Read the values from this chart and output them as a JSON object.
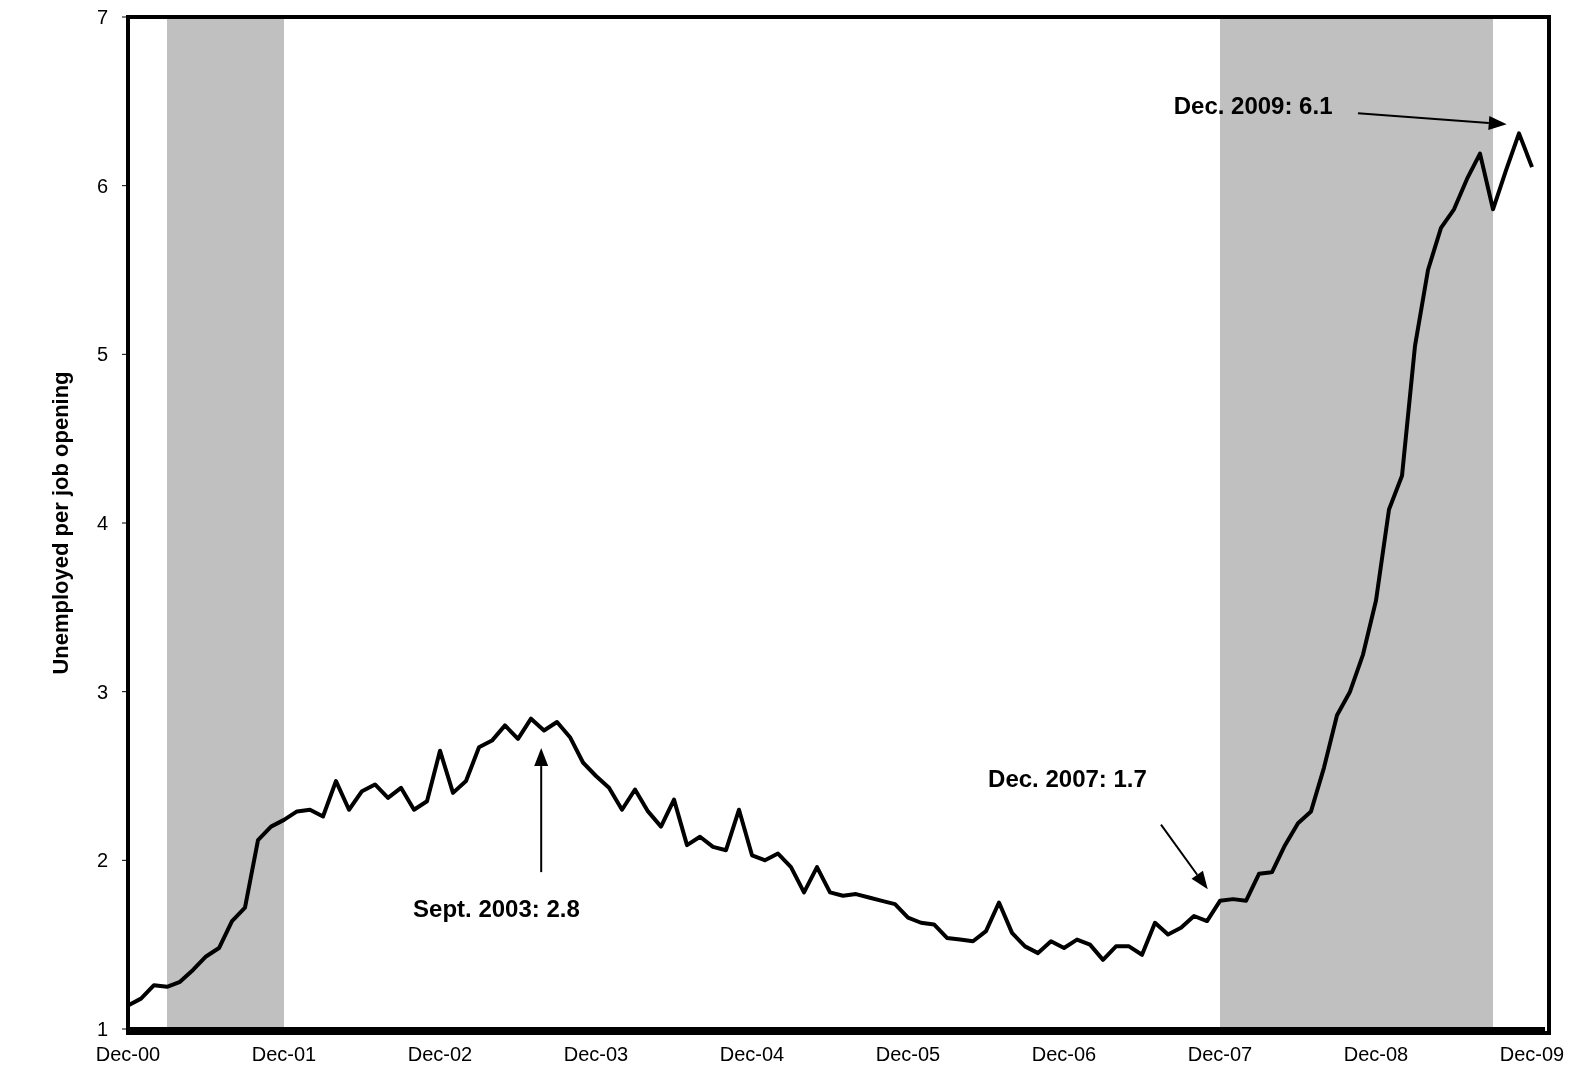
{
  "chart_data": {
    "type": "line",
    "ylabel": "Unemployed per job opening",
    "x": [
      "2000-12",
      "2001-01",
      "2001-02",
      "2001-03",
      "2001-04",
      "2001-05",
      "2001-06",
      "2001-07",
      "2001-08",
      "2001-09",
      "2001-10",
      "2001-11",
      "2001-12",
      "2002-01",
      "2002-02",
      "2002-03",
      "2002-04",
      "2002-05",
      "2002-06",
      "2002-07",
      "2002-08",
      "2002-09",
      "2002-10",
      "2002-11",
      "2002-12",
      "2003-01",
      "2003-02",
      "2003-03",
      "2003-04",
      "2003-05",
      "2003-06",
      "2003-07",
      "2003-08",
      "2003-09",
      "2003-10",
      "2003-11",
      "2003-12",
      "2004-01",
      "2004-02",
      "2004-03",
      "2004-04",
      "2004-05",
      "2004-06",
      "2004-07",
      "2004-08",
      "2004-09",
      "2004-10",
      "2004-11",
      "2004-12",
      "2005-01",
      "2005-02",
      "2005-03",
      "2005-04",
      "2005-05",
      "2005-06",
      "2005-07",
      "2005-08",
      "2005-09",
      "2005-10",
      "2005-11",
      "2005-12",
      "2006-01",
      "2006-02",
      "2006-03",
      "2006-04",
      "2006-05",
      "2006-06",
      "2006-07",
      "2006-08",
      "2006-09",
      "2006-10",
      "2006-11",
      "2006-12",
      "2007-01",
      "2007-02",
      "2007-03",
      "2007-04",
      "2007-05",
      "2007-06",
      "2007-07",
      "2007-08",
      "2007-09",
      "2007-10",
      "2007-11",
      "2007-12",
      "2008-01",
      "2008-02",
      "2008-03",
      "2008-04",
      "2008-05",
      "2008-06",
      "2008-07",
      "2008-08",
      "2008-09",
      "2008-10",
      "2008-11",
      "2008-12",
      "2009-01",
      "2009-02",
      "2009-03",
      "2009-04",
      "2009-05",
      "2009-06",
      "2009-07",
      "2009-08",
      "2009-09",
      "2009-10",
      "2009-11",
      "2009-12"
    ],
    "series": [
      {
        "color": "#000000",
        "values": [
          1.14,
          1.18,
          1.26,
          1.25,
          1.28,
          1.35,
          1.43,
          1.48,
          1.64,
          1.72,
          2.12,
          2.2,
          2.24,
          2.29,
          2.3,
          2.26,
          2.47,
          2.3,
          2.41,
          2.45,
          2.37,
          2.43,
          2.3,
          2.35,
          2.65,
          2.4,
          2.47,
          2.67,
          2.71,
          2.8,
          2.72,
          2.84,
          2.77,
          2.82,
          2.73,
          2.58,
          2.5,
          2.43,
          2.3,
          2.42,
          2.29,
          2.2,
          2.36,
          2.09,
          2.14,
          2.08,
          2.06,
          2.3,
          2.03,
          2.0,
          2.04,
          1.96,
          1.81,
          1.96,
          1.81,
          1.79,
          1.8,
          1.78,
          1.76,
          1.74,
          1.66,
          1.63,
          1.62,
          1.54,
          1.53,
          1.52,
          1.58,
          1.75,
          1.57,
          1.49,
          1.45,
          1.52,
          1.48,
          1.53,
          1.5,
          1.41,
          1.49,
          1.49,
          1.44,
          1.63,
          1.56,
          1.6,
          1.67,
          1.64,
          1.76,
          1.77,
          1.76,
          1.92,
          1.93,
          2.09,
          2.22,
          2.29,
          2.55,
          2.86,
          3.0,
          3.22,
          3.54,
          4.08,
          4.28,
          5.05,
          5.5,
          5.75,
          5.86,
          6.04,
          6.19,
          5.86,
          6.09,
          6.31,
          6.11
        ]
      }
    ],
    "xlim": [
      "2000-12",
      "2010-01"
    ],
    "xticks": [
      {
        "value": "2000-12",
        "label": "Dec-00"
      },
      {
        "value": "2001-12",
        "label": "Dec-01"
      },
      {
        "value": "2002-12",
        "label": "Dec-02"
      },
      {
        "value": "2003-12",
        "label": "Dec-03"
      },
      {
        "value": "2004-12",
        "label": "Dec-04"
      },
      {
        "value": "2005-12",
        "label": "Dec-05"
      },
      {
        "value": "2006-12",
        "label": "Dec-06"
      },
      {
        "value": "2007-12",
        "label": "Dec-07"
      },
      {
        "value": "2008-12",
        "label": "Dec-08"
      },
      {
        "value": "2009-12",
        "label": "Dec-09"
      }
    ],
    "ylim": [
      1,
      7
    ],
    "yticks": [
      1,
      2,
      3,
      4,
      5,
      6,
      7
    ],
    "bands": [
      {
        "axis": "x",
        "from": "2001-03",
        "to": "2001-12",
        "color": "#c0c0c0"
      },
      {
        "axis": "x",
        "from": "2007-12",
        "to": "2009-09",
        "color": "#c0c0c0"
      }
    ],
    "annotations": [
      "Sept. 2003: 2.8",
      "Dec. 2007: 1.7",
      "Dec. 2009: 6.1"
    ],
    "grid": false,
    "legend": false,
    "marker": "none",
    "line_style": "solid"
  }
}
